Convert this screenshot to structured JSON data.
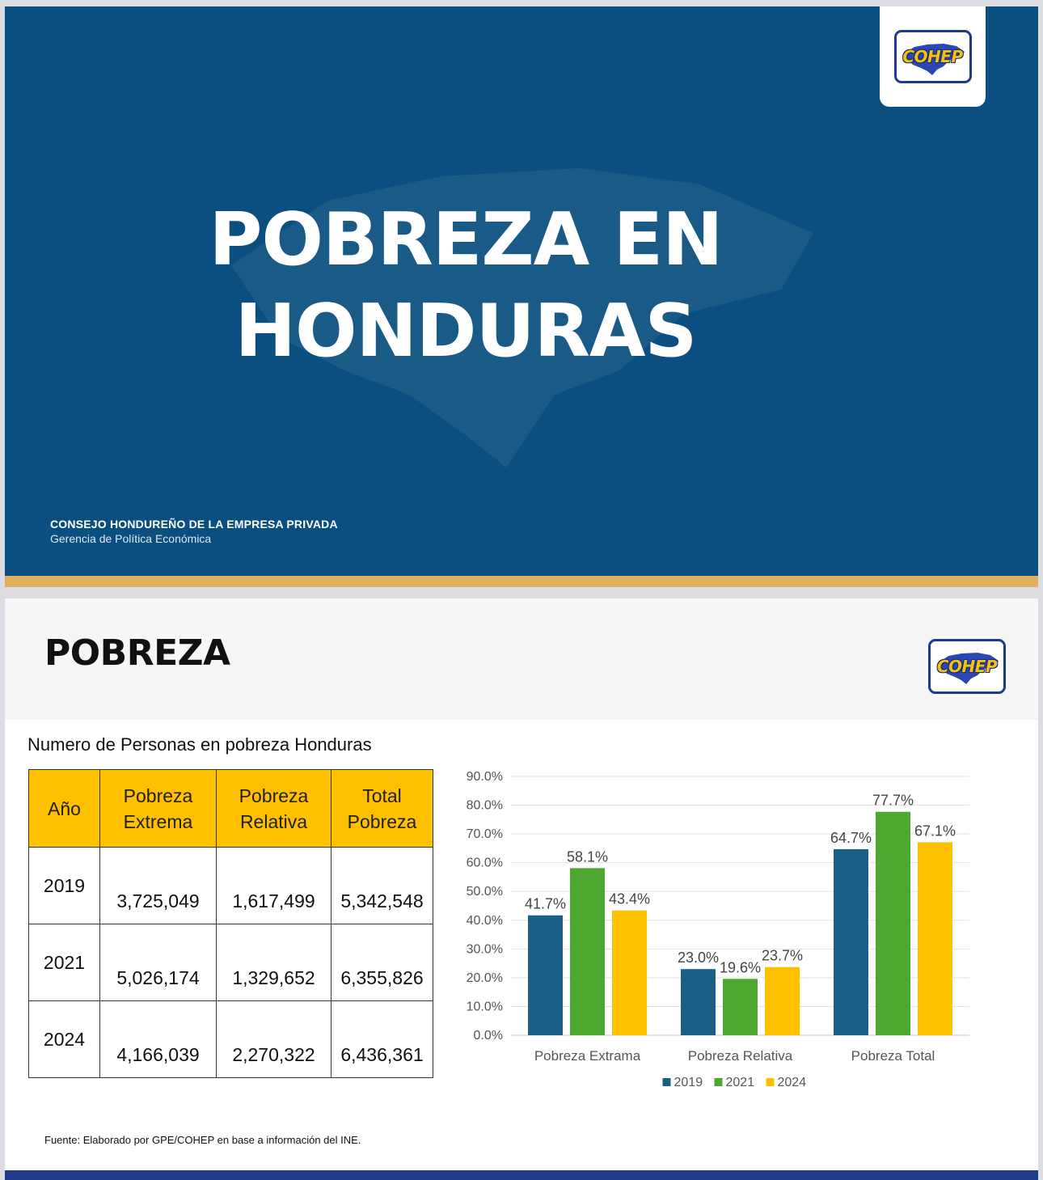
{
  "slide1": {
    "title_line1": "POBREZA EN",
    "title_line2": "HONDURAS",
    "org_name": "CONSEJO HONDUREÑO DE LA EMPRESA PRIVADA",
    "org_sub": "Gerencia de Política Económica",
    "logo_text": "COHEP"
  },
  "slide2": {
    "title": "POBREZA",
    "logo_text": "COHEP",
    "table_title": "Numero de Personas en pobreza Honduras",
    "table": {
      "headers": [
        "Año",
        "Pobreza Extrema",
        "Pobreza Relativa",
        "Total Pobreza"
      ],
      "rows": [
        [
          "2019",
          "3,725,049",
          "1,617,499",
          "5,342,548"
        ],
        [
          "2021",
          "5,026,174",
          "1,329,652",
          "6,355,826"
        ],
        [
          "2024",
          "4,166,039",
          "2,270,322",
          "6,436,361"
        ]
      ]
    },
    "source": "Fuente: Elaborado por GPE/COHEP en base a información del INE."
  },
  "colors": {
    "navy": "#0b4f80",
    "gold_bar": "#e0b061",
    "table_header": "#ffc000",
    "series_2019": "#1a5f86",
    "series_2021": "#4ea72e",
    "series_2024": "#ffc000"
  },
  "chart_data": {
    "type": "bar",
    "categories": [
      "Pobreza Extrama",
      "Pobreza Relativa",
      "Pobreza Total"
    ],
    "series": [
      {
        "name": "2019",
        "values": [
          41.7,
          23.0,
          64.7
        ],
        "labels": [
          "41.7%",
          "23.0%",
          "64.7%"
        ]
      },
      {
        "name": "2021",
        "values": [
          58.1,
          19.6,
          77.7
        ],
        "labels": [
          "58.1%",
          "19.6%",
          "77.7%"
        ]
      },
      {
        "name": "2024",
        "values": [
          43.4,
          23.7,
          67.1
        ],
        "labels": [
          "43.4%",
          "23.7%",
          "67.1%"
        ]
      }
    ],
    "ylim": [
      0,
      90
    ],
    "yticks": [
      "0.0%",
      "10.0%",
      "20.0%",
      "30.0%",
      "40.0%",
      "50.0%",
      "60.0%",
      "70.0%",
      "80.0%",
      "90.0%"
    ],
    "legend": "bottom",
    "grid": true
  }
}
